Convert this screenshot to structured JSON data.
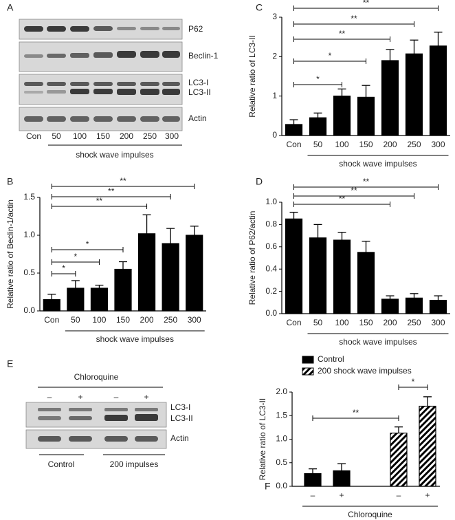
{
  "blots": [
    {
      "panel": "A",
      "rows": [
        "P62",
        "Beclin-1",
        "LC3-I",
        "LC3-II",
        "Actin"
      ],
      "lanes": [
        "Con",
        "50",
        "100",
        "150",
        "200",
        "250",
        "300"
      ],
      "x_label": "shock wave impulses"
    },
    {
      "panel": "E",
      "title": "Chloroquine",
      "lanes": [
        "–",
        "+",
        "–",
        "+"
      ],
      "rows": [
        "LC3-I",
        "LC3-II",
        "Actin"
      ],
      "groups": [
        "Control",
        "200 impulses"
      ]
    }
  ],
  "chart_data": [
    {
      "panel": "B",
      "type": "bar",
      "y_label": "Relative ratio of Beclin-1/actin",
      "x_label": "shock wave impulses",
      "color": "#000000",
      "categories": [
        "Con",
        "50",
        "100",
        "150",
        "200",
        "250",
        "300"
      ],
      "values": [
        0.15,
        0.3,
        0.3,
        0.55,
        1.02,
        0.89,
        1.0
      ],
      "errors": [
        0.07,
        0.1,
        0.04,
        0.1,
        0.25,
        0.2,
        0.12
      ],
      "ylim": [
        0,
        1.5
      ],
      "yticks": [
        {
          "value": 0,
          "label": "0.0"
        },
        {
          "value": 0.5,
          "label": "0.5"
        },
        {
          "value": 1,
          "label": "1.0"
        },
        {
          "value": 1.5,
          "label": "1.5"
        }
      ],
      "comparisons": [
        {
          "from": 0,
          "to": 6,
          "label": "**"
        },
        {
          "from": 0,
          "to": 5,
          "label": "**"
        },
        {
          "from": 0,
          "to": 4,
          "label": "**"
        },
        {
          "from": 0,
          "to": 3,
          "label": "*"
        },
        {
          "from": 0,
          "to": 2,
          "label": "*"
        },
        {
          "from": 0,
          "to": 1,
          "label": "*"
        }
      ]
    },
    {
      "panel": "C",
      "type": "bar",
      "y_label": "Relative ratio of LC3-II",
      "x_label": "shock wave impulses",
      "color": "#000000",
      "categories": [
        "Con",
        "50",
        "100",
        "150",
        "200",
        "250",
        "300"
      ],
      "values": [
        0.28,
        0.45,
        1.0,
        0.97,
        1.9,
        2.07,
        2.27
      ],
      "errors": [
        0.12,
        0.12,
        0.18,
        0.3,
        0.28,
        0.35,
        0.35
      ],
      "ylim": [
        0,
        3
      ],
      "yticks": [
        0,
        1,
        2,
        3
      ],
      "comparisons": [
        {
          "from": 0,
          "to": 6,
          "label": "**"
        },
        {
          "from": 0,
          "to": 5,
          "label": "**"
        },
        {
          "from": 0,
          "to": 4,
          "label": "**"
        },
        {
          "from": 0,
          "to": 3,
          "label": "*"
        },
        {
          "from": 0,
          "to": 2,
          "label": "*"
        }
      ]
    },
    {
      "panel": "D",
      "type": "bar",
      "y_label": "Relative ratio of P62/actin",
      "x_label": "shock wave impulses",
      "color": "#000000",
      "categories": [
        "Con",
        "50",
        "100",
        "150",
        "200",
        "250",
        "300"
      ],
      "values": [
        0.85,
        0.68,
        0.66,
        0.55,
        0.13,
        0.14,
        0.12
      ],
      "errors": [
        0.06,
        0.12,
        0.07,
        0.1,
        0.03,
        0.04,
        0.04
      ],
      "ylim": [
        0,
        1
      ],
      "yticks": [
        {
          "value": 0,
          "label": "0.0"
        },
        {
          "value": 0.2,
          "label": "0.2"
        },
        {
          "value": 0.4,
          "label": "0.4"
        },
        {
          "value": 0.6,
          "label": "0.6"
        },
        {
          "value": 0.8,
          "label": "0.8"
        },
        {
          "value": 1,
          "label": "1.0"
        }
      ],
      "comparisons": [
        {
          "from": 0,
          "to": 6,
          "label": "**"
        },
        {
          "from": 0,
          "to": 5,
          "label": "**"
        },
        {
          "from": 0,
          "to": 4,
          "label": "**"
        }
      ]
    },
    {
      "panel": "F",
      "type": "bar",
      "y_label": "Relative ratio of LC3-II",
      "x_label": "Chloroquine",
      "legend": "top-left",
      "categories": [
        "–",
        "+"
      ],
      "series": [
        {
          "name": "Control",
          "color": "#000000",
          "values": [
            0.27,
            0.33
          ],
          "errors": [
            0.1,
            0.15
          ]
        },
        {
          "name": "200 shock wave impulses",
          "color": "#000000",
          "pattern": "hatch",
          "values": [
            1.13,
            1.7
          ],
          "errors": [
            0.13,
            0.2
          ]
        }
      ],
      "ylim": [
        0,
        2
      ],
      "yticks": [
        {
          "value": 0,
          "label": "0.0"
        },
        {
          "value": 0.5,
          "label": "0.5"
        },
        {
          "value": 1,
          "label": "1.0"
        },
        {
          "value": 1.5,
          "label": "1.5"
        },
        {
          "value": 2,
          "label": "2.0"
        }
      ],
      "comparisons": [
        {
          "from": 0,
          "to": 2,
          "label": "**"
        },
        {
          "from": 2,
          "to": 3,
          "label": "*"
        }
      ]
    }
  ]
}
